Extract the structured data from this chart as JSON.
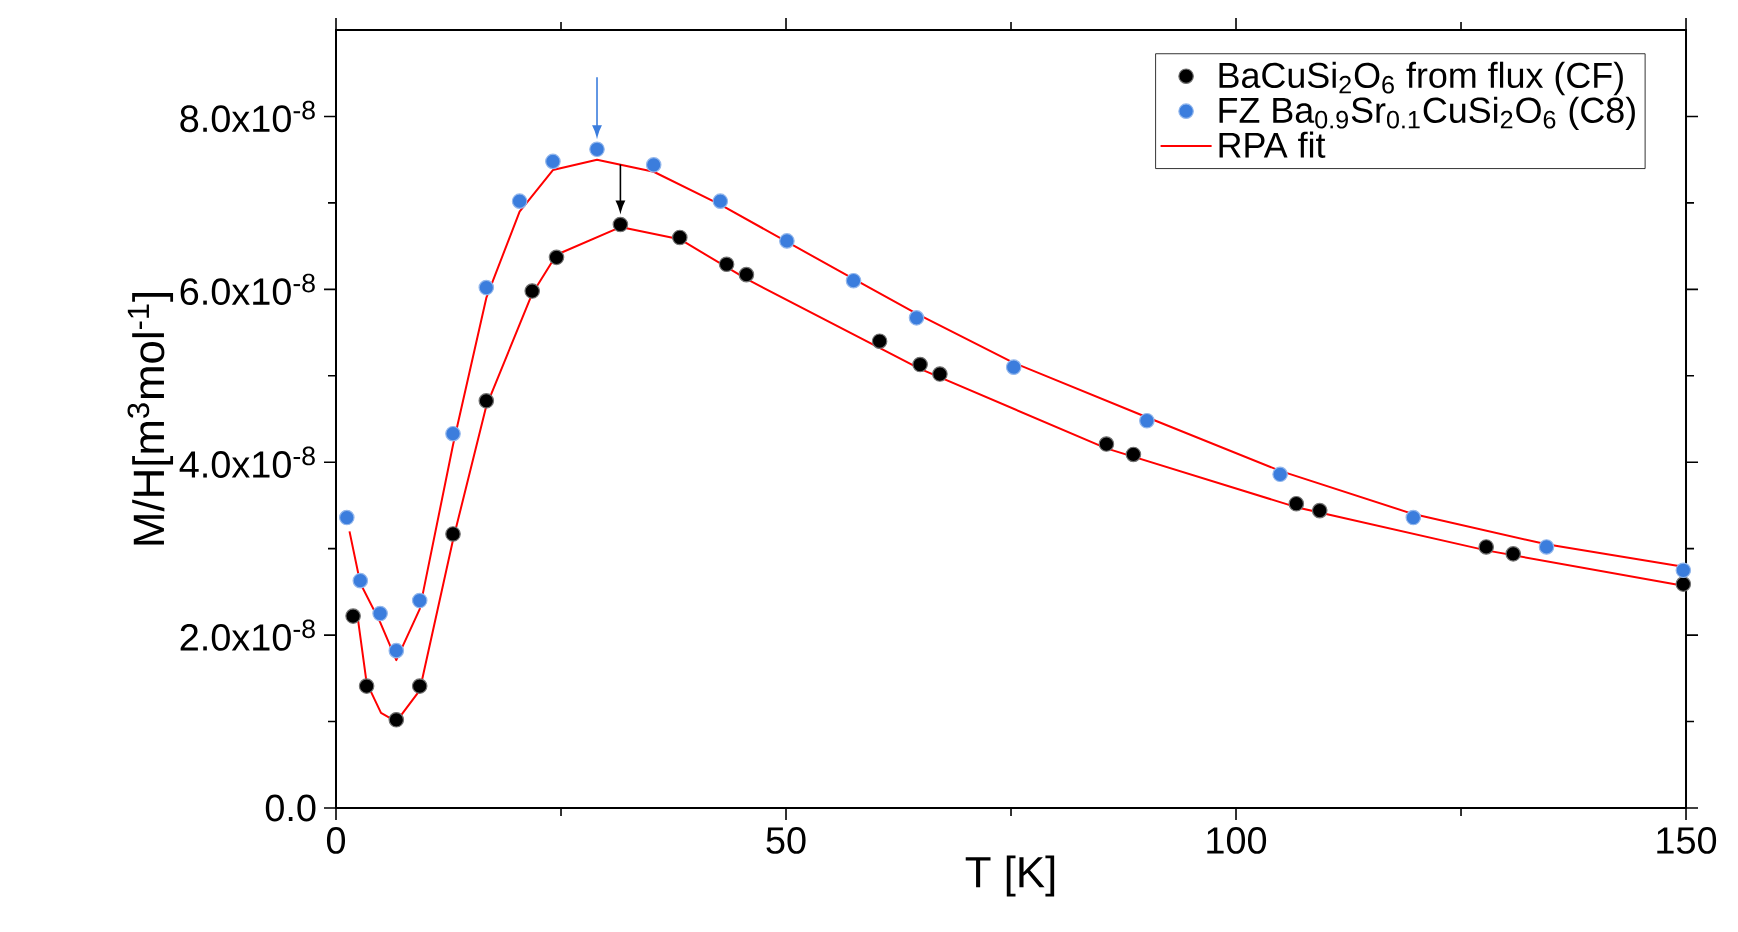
{
  "chart_data": {
    "type": "scatter",
    "xlabel": "T [K]",
    "ylabel": "M/H[m$^{3}$mol$^{-1}$]",
    "xlim": [
      0,
      150
    ],
    "ylim": [
      0,
      9e-08
    ],
    "xticks": [
      0,
      {
        "value": 25,
        "label": null
      },
      50,
      {
        "value": 75,
        "label": null
      },
      100,
      {
        "value": 125,
        "label": null
      },
      150
    ],
    "yticks": [
      {
        "value": 0,
        "label": "0.0"
      },
      {
        "value": 1e-08,
        "label": null
      },
      {
        "value": 2e-08,
        "label": "2.0x10$^{-8}$"
      },
      {
        "value": 3e-08,
        "label": null
      },
      {
        "value": 4e-08,
        "label": "4.0x10$^{-8}$"
      },
      {
        "value": 5e-08,
        "label": null
      },
      {
        "value": 6e-08,
        "label": "6.0x10$^{-8}$"
      },
      {
        "value": 7e-08,
        "label": null
      },
      {
        "value": 8e-08,
        "label": "8.0x10$^{-8}$"
      }
    ],
    "legend": "top right",
    "marker": "circle",
    "series": [
      {
        "name": "BaCuSi$_{2}$O$_{6}$ from flux (CF)",
        "color": "#000000",
        "x": [
          1.9,
          3.4,
          6.7,
          9.3,
          13.0,
          16.7,
          21.8,
          24.5,
          31.6,
          38.2,
          43.4,
          45.6,
          60.4,
          64.9,
          67.1,
          85.6,
          88.6,
          106.7,
          109.3,
          127.8,
          130.8,
          149.7
        ],
        "values": [
          2.22e-08,
          1.41e-08,
          1.02e-08,
          1.41e-08,
          3.17e-08,
          4.71e-08,
          5.98e-08,
          6.37e-08,
          6.75e-08,
          6.6e-08,
          6.29e-08,
          6.17e-08,
          5.4e-08,
          5.13e-08,
          5.02e-08,
          4.21e-08,
          4.09e-08,
          3.52e-08,
          3.44e-08,
          3.02e-08,
          2.94e-08,
          2.59e-08
        ]
      },
      {
        "name": "FZ Ba$_{0.9}$Sr$_{0.1}$CuSi$_{2}$O$_{6}$ (C8)",
        "color": "#3b7ddd",
        "x": [
          1.2,
          2.7,
          4.9,
          6.7,
          9.3,
          13.0,
          16.7,
          20.4,
          24.1,
          29.0,
          35.3,
          42.7,
          50.1,
          57.5,
          64.5,
          75.3,
          90.1,
          104.9,
          119.7,
          134.5,
          149.7
        ],
        "values": [
          3.36e-08,
          2.63e-08,
          2.25e-08,
          1.82e-08,
          2.4e-08,
          4.33e-08,
          6.02e-08,
          7.02e-08,
          7.48e-08,
          7.62e-08,
          7.44e-08,
          7.02e-08,
          6.56e-08,
          6.1e-08,
          5.67e-08,
          5.1e-08,
          4.48e-08,
          3.86e-08,
          3.36e-08,
          3.02e-08,
          2.75e-08
        ]
      },
      {
        "name": "RPA fit",
        "type": "line",
        "marker": "none",
        "color": "#ff0000",
        "x": [
          2.3,
          3.4,
          5.0,
          6.7,
          9.3,
          13.0,
          16.7,
          21.8,
          24.5,
          31.6,
          38.2,
          45.6,
          64.9,
          85.6,
          106.7,
          127.8,
          149.7
        ],
        "values": [
          2.29e-08,
          1.45e-08,
          1.1e-08,
          1e-08,
          1.36e-08,
          3.1e-08,
          4.65e-08,
          5.95e-08,
          6.4e-08,
          6.72e-08,
          6.58e-08,
          6.12e-08,
          5.08e-08,
          4.16e-08,
          3.48e-08,
          2.98e-08,
          2.57e-08
        ]
      },
      {
        "type": "line",
        "marker": "none",
        "color": "#ff0000",
        "x": [
          1.5,
          2.7,
          4.9,
          6.7,
          9.3,
          13.0,
          16.7,
          20.4,
          24.1,
          29.0,
          35.3,
          42.7,
          50.1,
          57.5,
          64.5,
          75.3,
          90.1,
          104.9,
          119.7,
          134.5,
          149.7
        ],
        "values": [
          3.2e-08,
          2.6e-08,
          2.15e-08,
          1.71e-08,
          2.3e-08,
          4.2e-08,
          5.9e-08,
          6.9e-08,
          7.38e-08,
          7.5e-08,
          7.36e-08,
          6.98e-08,
          6.55e-08,
          6.12e-08,
          5.72e-08,
          5.15e-08,
          4.52e-08,
          3.9e-08,
          3.4e-08,
          3.05e-08,
          2.79e-08
        ]
      }
    ]
  }
}
